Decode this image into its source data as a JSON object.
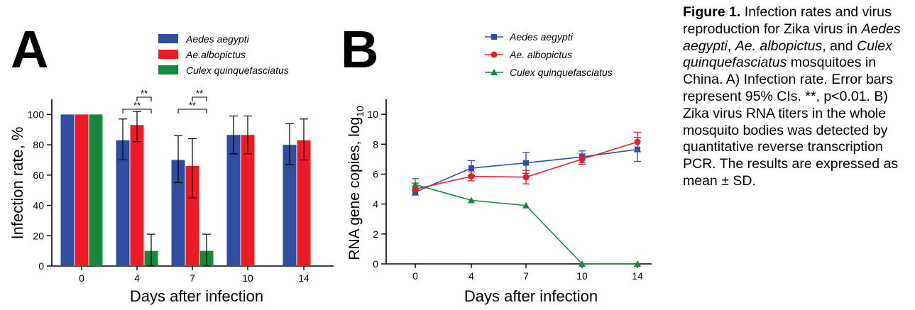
{
  "chart_data": [
    {
      "type": "bar",
      "panel_label": "A",
      "categories": [
        "0",
        "4",
        "7",
        "10",
        "14"
      ],
      "ylabel": "Infection rate, %",
      "xlabel": "Days after infection",
      "ylim": [
        0,
        110
      ],
      "yticks": [
        "0",
        "20",
        "40",
        "60",
        "80",
        "100"
      ],
      "legend_position": "top",
      "series": [
        {
          "name": "Aedes aegypti",
          "color": "#2f4ea2",
          "values": [
            100,
            83,
            70,
            86.5,
            80
          ],
          "err_low": [
            100,
            70,
            55,
            74,
            67
          ],
          "err_high": [
            100,
            97,
            86,
            99,
            94
          ]
        },
        {
          "name": "Ae.albopictus",
          "color": "#ed1c24",
          "values": [
            100,
            93,
            66,
            86.5,
            83
          ],
          "err_low": [
            100,
            82,
            45,
            74,
            70
          ],
          "err_high": [
            100,
            102,
            84,
            99,
            97
          ]
        },
        {
          "name": "Culex quinquefasciatus",
          "color": "#128a3e",
          "values": [
            100,
            10,
            10,
            null,
            null
          ],
          "err_low": [
            100,
            0,
            0,
            null,
            null
          ],
          "err_high": [
            100,
            21,
            21,
            null,
            null
          ]
        }
      ],
      "significance": [
        {
          "category": "4",
          "between": [
            "Ae.albopictus",
            "Culex quinquefasciatus"
          ],
          "label": "**"
        },
        {
          "category": "4",
          "between": [
            "Aedes aegypti",
            "Culex quinquefasciatus"
          ],
          "label": "**"
        },
        {
          "category": "7",
          "between": [
            "Ae.albopictus",
            "Culex quinquefasciatus"
          ],
          "label": "**"
        },
        {
          "category": "7",
          "between": [
            "Aedes aegypti",
            "Culex quinquefasciatus"
          ],
          "label": "**"
        }
      ]
    },
    {
      "type": "line",
      "panel_label": "B",
      "x": [
        0,
        4,
        7,
        10,
        14
      ],
      "xticks": [
        "0",
        "4",
        "7",
        "10",
        "14"
      ],
      "ylabel": "RNA gene copies, log",
      "ylabel_sub": "10",
      "xlabel": "Days after infection",
      "ylim": [
        0,
        11
      ],
      "yticks": [
        "0",
        "2",
        "4",
        "6",
        "8",
        "10"
      ],
      "legend_position": "top",
      "series": [
        {
          "name": "Aedes aegypti",
          "color": "#2f4ea2",
          "marker": "square",
          "values": [
            4.8,
            6.4,
            6.75,
            7.15,
            7.65
          ],
          "err": [
            0.2,
            0.5,
            0.7,
            0.4,
            0.8
          ]
        },
        {
          "name": "Ae. albopictus",
          "color": "#ed1c24",
          "marker": "circle",
          "values": [
            5.0,
            5.85,
            5.8,
            7.0,
            8.15
          ],
          "err": [
            0.4,
            0.3,
            0.45,
            0.35,
            0.65
          ]
        },
        {
          "name": "Culex quinquefasciatus",
          "color": "#128a3e",
          "marker": "triangle",
          "values": [
            5.3,
            4.25,
            3.9,
            0,
            0
          ],
          "err": [
            0.4,
            0,
            0,
            0,
            0
          ]
        }
      ]
    }
  ],
  "caption": {
    "label": "Figure 1.",
    "parts": [
      {
        "text": " Infection rates and virus reproduction for Zika virus in ",
        "italic": false
      },
      {
        "text": "Aedes aegypti",
        "italic": true
      },
      {
        "text": ", ",
        "italic": false
      },
      {
        "text": "Ae. albopictus",
        "italic": true
      },
      {
        "text": ", and ",
        "italic": false
      },
      {
        "text": "Culex quinquefasciatus",
        "italic": true
      },
      {
        "text": " mosquitoes in China. A) Infection rate. Error bars represent 95% CIs. **, p<0.01. B) Zika virus RNA titers in the whole mosquito bodies was detected by quantitative reverse transcription PCR. The results are expressed as mean ± SD.",
        "italic": false
      }
    ]
  }
}
